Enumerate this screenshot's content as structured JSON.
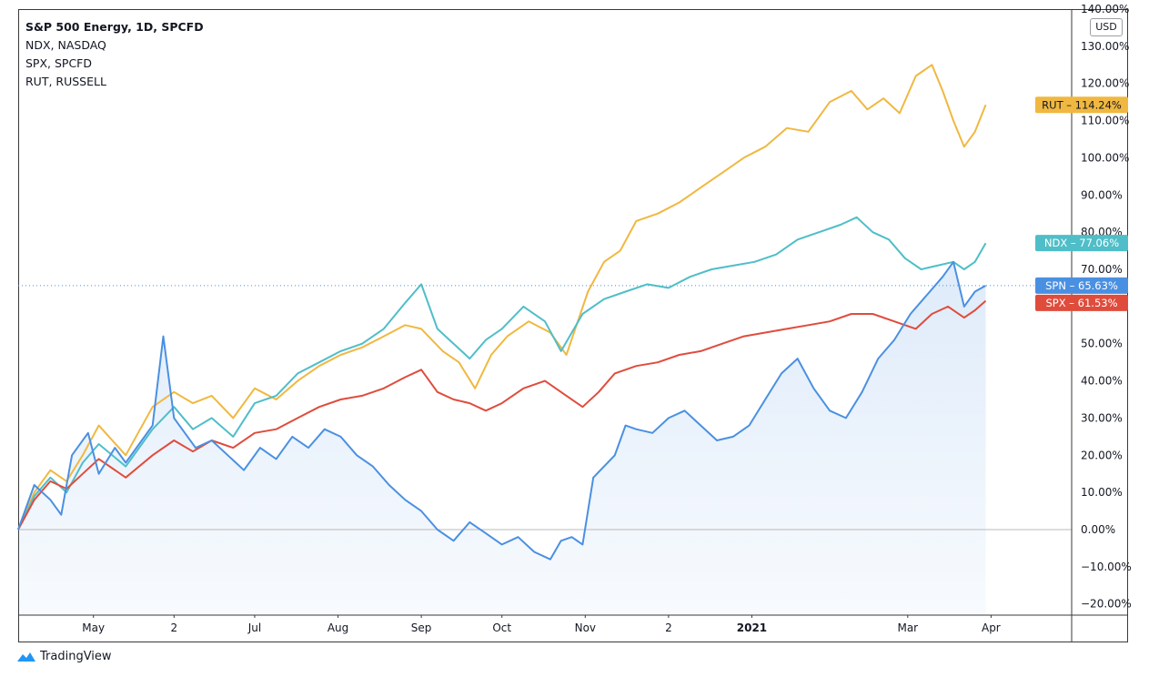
{
  "legend": {
    "title": "S&P 500 Energy, 1D, SPCFD",
    "items": [
      "NDX, NASDAQ",
      "SPX, SPCFD",
      "RUT, RUSSELL"
    ]
  },
  "currency_label": "USD",
  "brand": {
    "name": "TradingView",
    "icon": "tradingview-logo-icon"
  },
  "chart_data": {
    "type": "line",
    "y_unit": "%",
    "ylim": [
      -23,
      140
    ],
    "grid": false,
    "zero_line": true,
    "y_ticks": [
      "140.00%",
      "130.00%",
      "120.00%",
      "110.00%",
      "100.00%",
      "90.00%",
      "80.00%",
      "70.00%",
      "60.00%",
      "50.00%",
      "40.00%",
      "30.00%",
      "20.00%",
      "10.00%",
      "0.00%",
      "−10.00%",
      "−20.00%"
    ],
    "y_tick_values": [
      140,
      130,
      120,
      110,
      100,
      90,
      80,
      70,
      60,
      50,
      40,
      30,
      20,
      10,
      0,
      -10,
      -20
    ],
    "x_ticks": [
      "May",
      "2",
      "Jul",
      "Aug",
      "Sep",
      "Oct",
      "Nov",
      "2",
      "2021",
      "Mar",
      "Apr"
    ],
    "x_tick_bold": [
      false,
      false,
      false,
      false,
      false,
      false,
      false,
      false,
      true,
      false,
      false
    ],
    "x_tick_days": [
      28,
      58,
      88,
      119,
      150,
      180,
      211,
      242,
      273,
      331,
      362
    ],
    "x_range_days": [
      0,
      392
    ],
    "series": [
      {
        "name": "RUT",
        "label": "RUT",
        "value_label": "114.24%",
        "color": "#f0b840",
        "x": [
          0,
          6,
          12,
          18,
          24,
          30,
          40,
          50,
          58,
          65,
          72,
          80,
          88,
          96,
          104,
          112,
          120,
          128,
          136,
          144,
          150,
          158,
          164,
          170,
          176,
          182,
          190,
          198,
          204,
          212,
          218,
          224,
          230,
          238,
          246,
          254,
          262,
          270,
          278,
          286,
          294,
          302,
          310,
          316,
          322,
          328,
          334,
          340,
          344,
          348,
          352,
          356,
          360
        ],
        "y": [
          0,
          10,
          16,
          13,
          20,
          28,
          20,
          33,
          37,
          34,
          36,
          30,
          38,
          35,
          40,
          44,
          47,
          49,
          52,
          55,
          54,
          48,
          45,
          38,
          47,
          52,
          56,
          53,
          47,
          64,
          72,
          75,
          83,
          85,
          88,
          92,
          96,
          100,
          103,
          108,
          107,
          115,
          118,
          113,
          116,
          112,
          122,
          125,
          118,
          110,
          103,
          107,
          114.24
        ]
      },
      {
        "name": "NDX",
        "label": "NDX",
        "value_label": "77.06%",
        "color": "#4fbec8",
        "x": [
          0,
          6,
          12,
          18,
          24,
          30,
          40,
          50,
          58,
          65,
          72,
          80,
          88,
          96,
          104,
          112,
          120,
          128,
          136,
          144,
          150,
          156,
          162,
          168,
          174,
          180,
          188,
          196,
          202,
          210,
          218,
          226,
          234,
          242,
          250,
          258,
          266,
          274,
          282,
          290,
          298,
          306,
          312,
          318,
          324,
          330,
          336,
          342,
          348,
          352,
          356,
          360
        ],
        "y": [
          0,
          9,
          14,
          10,
          18,
          23,
          17,
          27,
          33,
          27,
          30,
          25,
          34,
          36,
          42,
          45,
          48,
          50,
          54,
          61,
          66,
          54,
          50,
          46,
          51,
          54,
          60,
          56,
          48,
          58,
          62,
          64,
          66,
          65,
          68,
          70,
          71,
          72,
          74,
          78,
          80,
          82,
          84,
          80,
          78,
          73,
          70,
          71,
          72,
          70,
          72,
          77.06
        ]
      },
      {
        "name": "SPX",
        "label": "SPX",
        "value_label": "61.53%",
        "color": "#df4c3c",
        "x": [
          0,
          6,
          12,
          18,
          24,
          30,
          40,
          50,
          58,
          65,
          72,
          80,
          88,
          96,
          104,
          112,
          120,
          128,
          136,
          144,
          150,
          156,
          162,
          168,
          174,
          180,
          188,
          196,
          204,
          210,
          216,
          222,
          230,
          238,
          246,
          254,
          262,
          270,
          278,
          286,
          294,
          302,
          310,
          318,
          326,
          334,
          340,
          346,
          352,
          356,
          360
        ],
        "y": [
          0,
          8,
          13,
          11,
          15,
          19,
          14,
          20,
          24,
          21,
          24,
          22,
          26,
          27,
          30,
          33,
          35,
          36,
          38,
          41,
          43,
          37,
          35,
          34,
          32,
          34,
          38,
          40,
          36,
          33,
          37,
          42,
          44,
          45,
          47,
          48,
          50,
          52,
          53,
          54,
          55,
          56,
          58,
          58,
          56,
          54,
          58,
          60,
          57,
          59,
          61.53
        ]
      },
      {
        "name": "SPN",
        "label": "SPN",
        "value_label": "65.63%",
        "color": "#4a90e2",
        "fill": true,
        "x": [
          0,
          6,
          12,
          16,
          20,
          26,
          30,
          36,
          40,
          46,
          50,
          54,
          58,
          62,
          66,
          72,
          78,
          84,
          90,
          96,
          102,
          108,
          114,
          120,
          126,
          132,
          138,
          144,
          150,
          156,
          162,
          168,
          174,
          180,
          186,
          192,
          198,
          202,
          206,
          210,
          214,
          218,
          222,
          226,
          230,
          236,
          242,
          248,
          254,
          260,
          266,
          272,
          278,
          284,
          290,
          296,
          302,
          308,
          314,
          320,
          326,
          332,
          338,
          344,
          348,
          352,
          356,
          360
        ],
        "y": [
          0,
          12,
          8,
          4,
          20,
          26,
          15,
          22,
          18,
          24,
          28,
          52,
          30,
          26,
          22,
          24,
          20,
          16,
          22,
          19,
          25,
          22,
          27,
          25,
          20,
          17,
          12,
          8,
          5,
          0,
          -3,
          2,
          -1,
          -4,
          -2,
          -6,
          -8,
          -3,
          -2,
          -4,
          14,
          17,
          20,
          28,
          27,
          26,
          30,
          32,
          28,
          24,
          25,
          28,
          35,
          42,
          46,
          38,
          32,
          30,
          37,
          46,
          51,
          58,
          63,
          68,
          72,
          60,
          64,
          65.63
        ]
      }
    ]
  }
}
